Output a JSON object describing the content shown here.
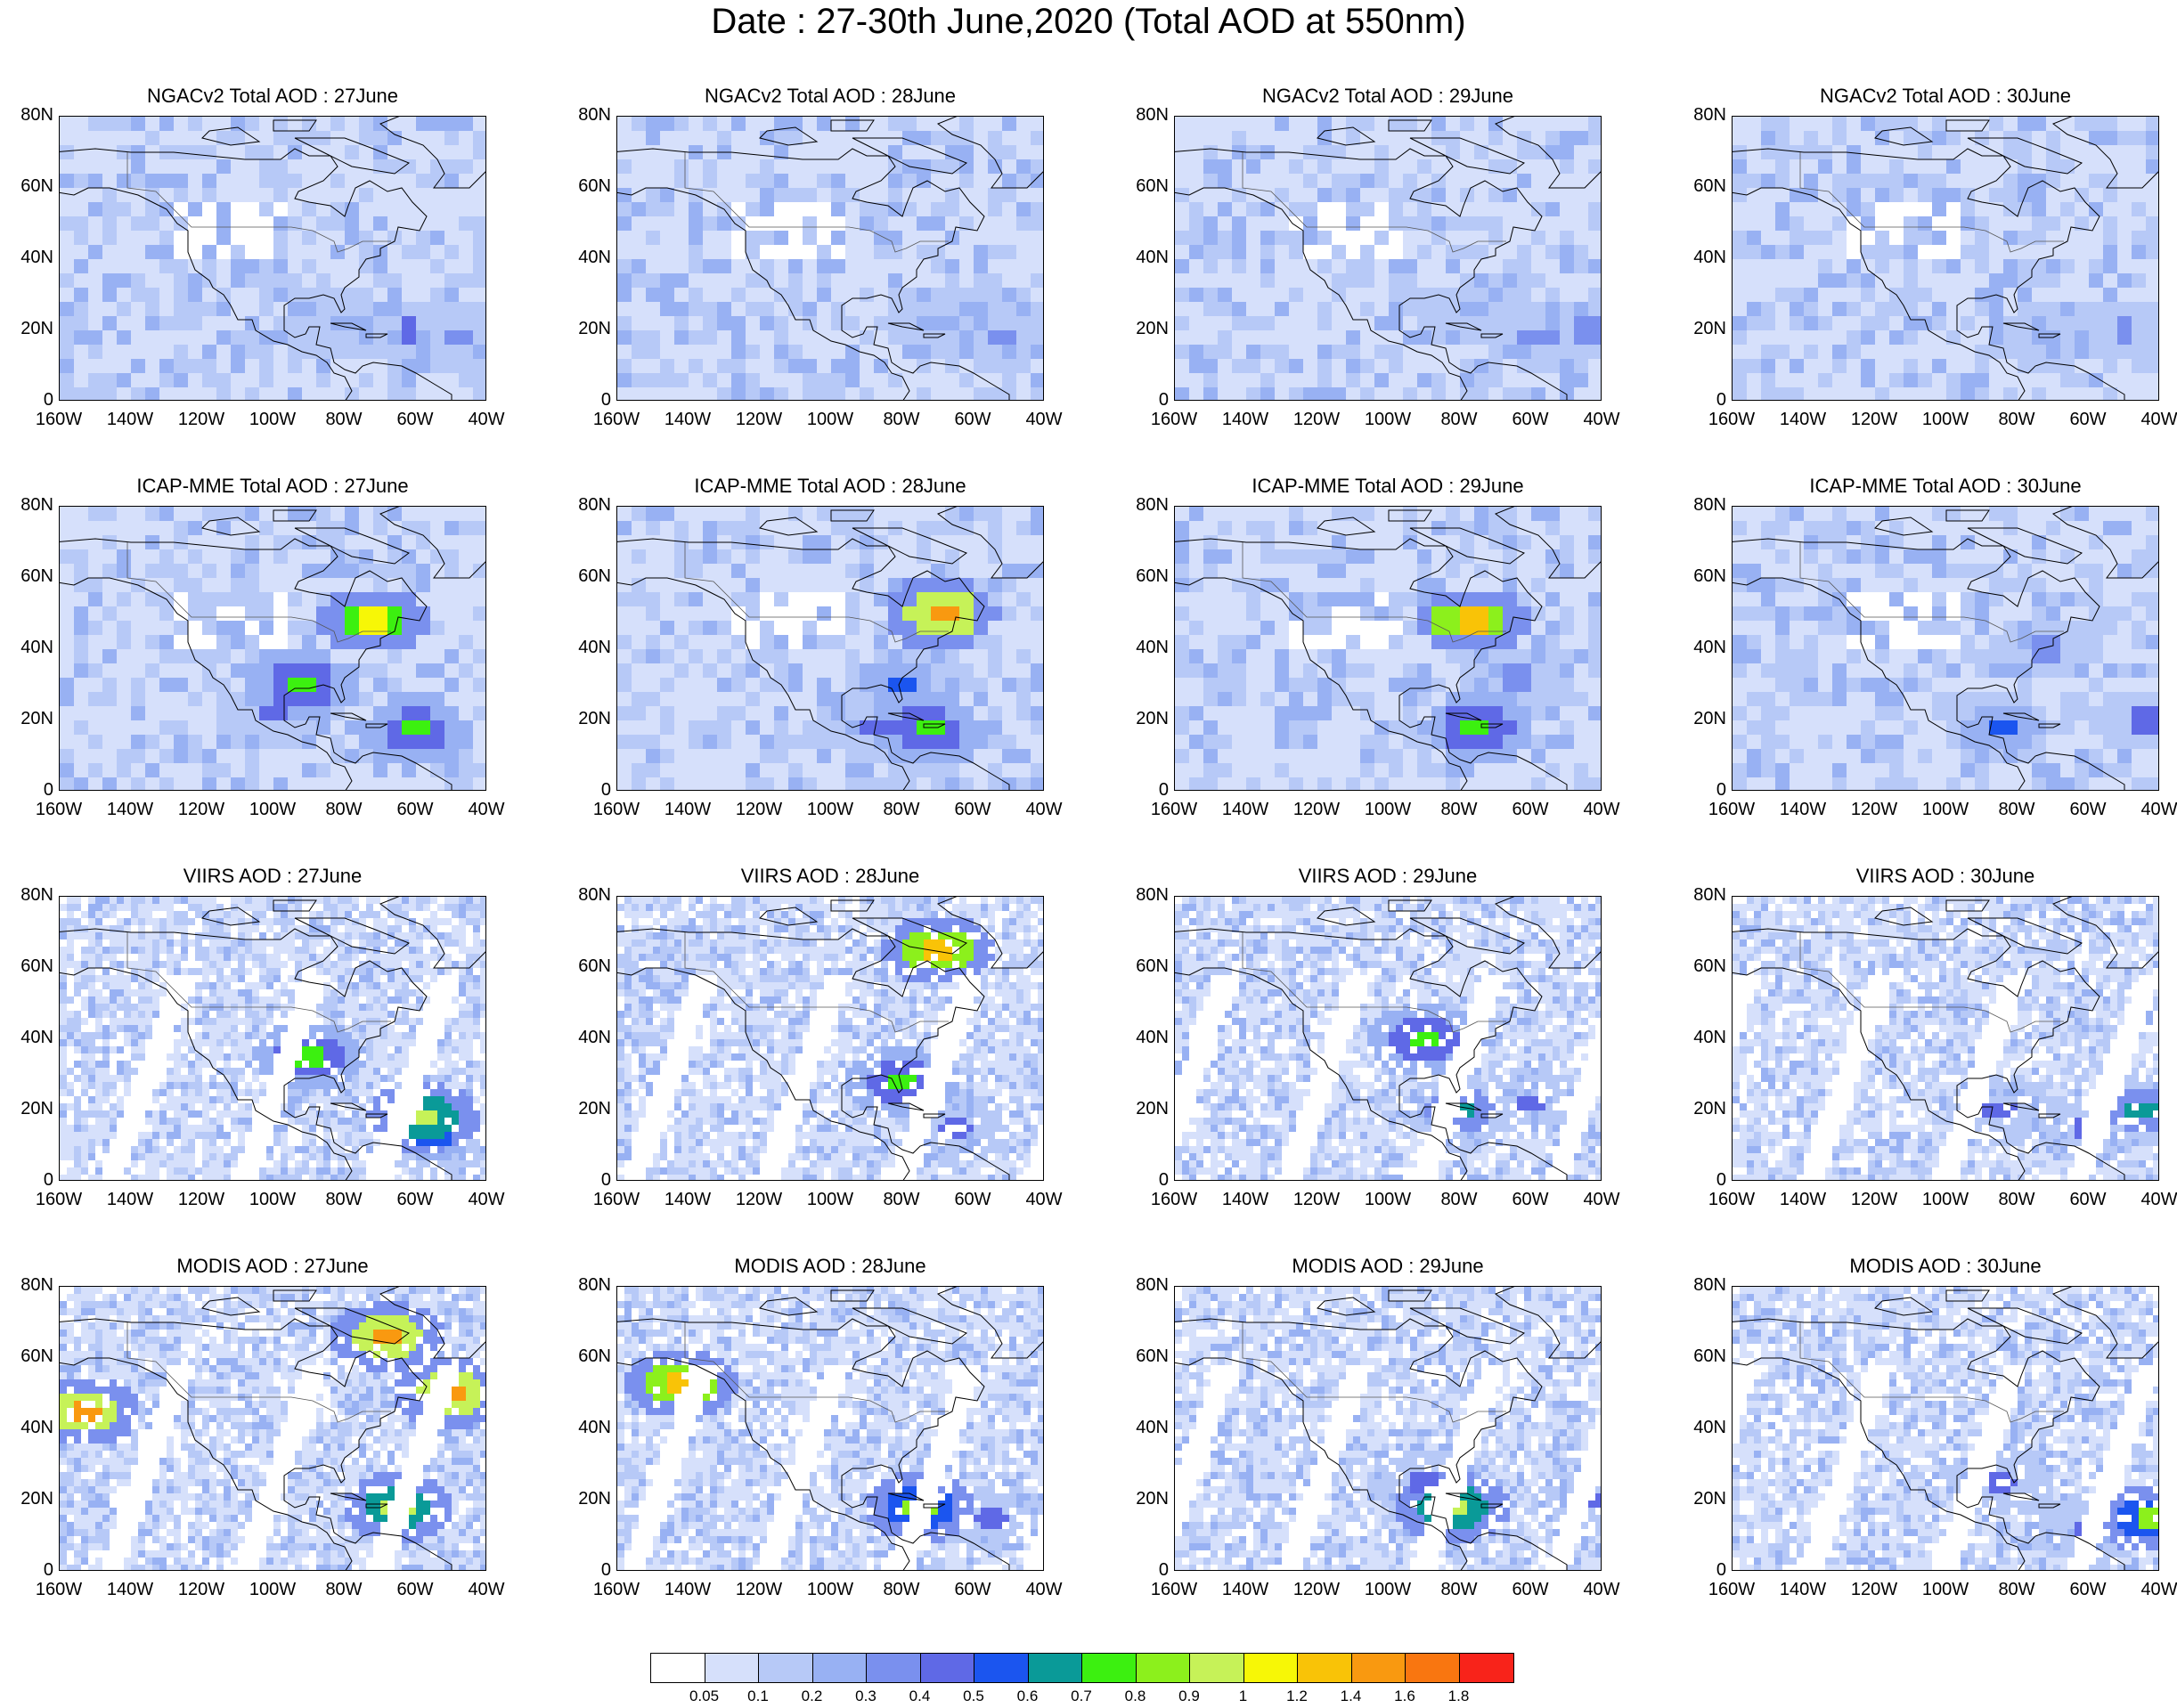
{
  "title": "Date : 27-30th June,2020 (Total AOD at 550nm)",
  "map": {
    "lat_ticks": [
      "80N",
      "60N",
      "40N",
      "20N",
      "0"
    ],
    "lon_ticks": [
      "160W",
      "140W",
      "120W",
      "100W",
      "80W",
      "60W",
      "40W"
    ],
    "lat_range": [
      0,
      80
    ],
    "lon_range": [
      -160,
      -40
    ]
  },
  "rows": [
    {
      "name": "ngacv2",
      "panels": [
        {
          "title": "NGACv2 Total AOD : 27June",
          "hotspots": [
            {
              "lon": -62,
              "lat": 20,
              "level": 5
            },
            {
              "lon": -48,
              "lat": 18,
              "level": 4
            },
            {
              "lon": -80,
              "lat": 22,
              "level": 3
            }
          ]
        },
        {
          "title": "NGACv2 Total AOD : 28June",
          "hotspots": [
            {
              "lon": -52,
              "lat": 19,
              "level": 4
            },
            {
              "lon": -70,
              "lat": 22,
              "level": 3
            }
          ]
        },
        {
          "title": "NGACv2 Total AOD : 29June",
          "hotspots": [
            {
              "lon": -58,
              "lat": 19,
              "level": 4
            },
            {
              "lon": -45,
              "lat": 20,
              "level": 4
            },
            {
              "lon": -75,
              "lat": 25,
              "level": 3
            }
          ]
        },
        {
          "title": "NGACv2 Total AOD : 30June",
          "hotspots": [
            {
              "lon": -50,
              "lat": 20,
              "level": 4
            },
            {
              "lon": -72,
              "lat": 18,
              "level": 3
            }
          ]
        }
      ]
    },
    {
      "name": "icap-mme",
      "panels": [
        {
          "title": "ICAP-MME Total AOD : 27June",
          "hotspots": [
            {
              "lon": -60,
              "lat": 17,
              "level": 8
            },
            {
              "lon": -92,
              "lat": 30,
              "level": 8
            },
            {
              "lon": -72,
              "lat": 48,
              "level": 11
            },
            {
              "lon": -100,
              "lat": 22,
              "level": 5
            }
          ]
        },
        {
          "title": "ICAP-MME Total AOD : 28June",
          "hotspots": [
            {
              "lon": -73,
              "lat": 17,
              "level": 8
            },
            {
              "lon": -80,
              "lat": 30,
              "level": 6
            },
            {
              "lon": -69,
              "lat": 50,
              "level": 13
            },
            {
              "lon": -88,
              "lat": 18,
              "level": 5
            }
          ]
        },
        {
          "title": "ICAP-MME Total AOD : 29June",
          "hotspots": [
            {
              "lon": -75,
              "lat": 18,
              "level": 8
            },
            {
              "lon": -77,
              "lat": 48,
              "level": 12
            },
            {
              "lon": -65,
              "lat": 32,
              "level": 4
            }
          ]
        },
        {
          "title": "ICAP-MME Total AOD : 30June",
          "hotspots": [
            {
              "lon": -85,
              "lat": 18,
              "level": 6
            },
            {
              "lon": -45,
              "lat": 20,
              "level": 5
            },
            {
              "lon": -72,
              "lat": 40,
              "level": 4
            }
          ]
        }
      ]
    },
    {
      "name": "viirs",
      "panels": [
        {
          "title": "VIIRS AOD : 27June",
          "hotspots": [
            {
              "lon": -58,
              "lat": 18,
              "level": 10
            },
            {
              "lon": -90,
              "lat": 35,
              "level": 8
            },
            {
              "lon": -55,
              "lat": 12,
              "level": 6
            }
          ]
        },
        {
          "title": "VIIRS AOD : 28June",
          "hotspots": [
            {
              "lon": -80,
              "lat": 28,
              "level": 8
            },
            {
              "lon": -65,
              "lat": 15,
              "level": 5
            },
            {
              "lon": -70,
              "lat": 65,
              "level": 12
            }
          ]
        },
        {
          "title": "VIIRS AOD : 29June",
          "hotspots": [
            {
              "lon": -80,
              "lat": 20,
              "level": 7
            },
            {
              "lon": -90,
              "lat": 40,
              "level": 8
            },
            {
              "lon": -60,
              "lat": 22,
              "level": 5
            }
          ]
        },
        {
          "title": "VIIRS AOD : 30June",
          "hotspots": [
            {
              "lon": -85,
              "lat": 20,
              "level": 5
            },
            {
              "lon": -45,
              "lat": 20,
              "level": 7
            },
            {
              "lon": -60,
              "lat": 15,
              "level": 5
            }
          ]
        }
      ]
    },
    {
      "name": "modis",
      "panels": [
        {
          "title": "MODIS AOD : 27June",
          "hotspots": [
            {
              "lon": -65,
              "lat": 18,
              "level": 10
            },
            {
              "lon": -153,
              "lat": 45,
              "level": 13
            },
            {
              "lon": -68,
              "lat": 66,
              "level": 13
            },
            {
              "lon": -50,
              "lat": 50,
              "level": 13
            }
          ]
        },
        {
          "title": "MODIS AOD : 28June",
          "hotspots": [
            {
              "lon": -75,
              "lat": 18,
              "level": 9
            },
            {
              "lon": -142,
              "lat": 53,
              "level": 12
            },
            {
              "lon": -55,
              "lat": 15,
              "level": 5
            }
          ]
        },
        {
          "title": "MODIS AOD : 29June",
          "hotspots": [
            {
              "lon": -82,
              "lat": 18,
              "level": 10
            },
            {
              "lon": -90,
              "lat": 25,
              "level": 5
            },
            {
              "lon": -42,
              "lat": 20,
              "level": 5
            }
          ]
        },
        {
          "title": "MODIS AOD : 30June",
          "hotspots": [
            {
              "lon": -42,
              "lat": 15,
              "level": 9
            },
            {
              "lon": -85,
              "lat": 25,
              "level": 5
            },
            {
              "lon": -60,
              "lat": 12,
              "level": 5
            }
          ]
        }
      ]
    }
  ],
  "colorbar": {
    "colors": [
      "#ffffff",
      "#d6e0fb",
      "#b7c9f7",
      "#98b1f3",
      "#7a90ee",
      "#5f69e6",
      "#1b55ef",
      "#0a9a98",
      "#3cf010",
      "#8cf01c",
      "#c6f258",
      "#f7f706",
      "#f9c307",
      "#f99910",
      "#f97610",
      "#f8231a"
    ],
    "labels": [
      "0.05",
      "0.1",
      "0.2",
      "0.3",
      "0.4",
      "0.5",
      "0.6",
      "0.7",
      "0.8",
      "0.9",
      "1",
      "1.2",
      "1.4",
      "1.6",
      "1.8"
    ]
  }
}
